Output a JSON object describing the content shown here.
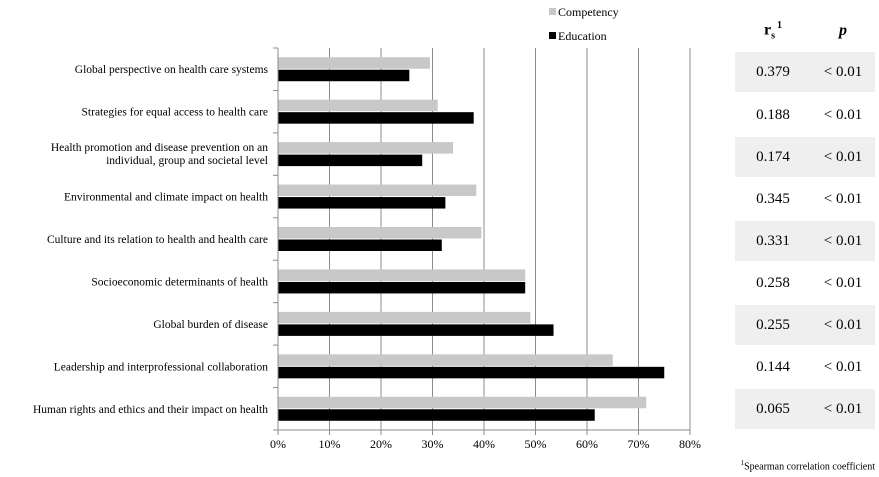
{
  "chart_data": {
    "type": "bar",
    "orientation": "horizontal",
    "categories": [
      "Global perspective on health care systems",
      "Strategies for equal access to health care",
      "Health promotion and disease prevention on an individual, group and societal level",
      "Environmental and climate impact on health",
      "Culture and its relation to health and health care",
      "Socioeconomic determinants of health",
      "Global burden of disease",
      "Leadership and interprofessional collaboration",
      "Human rights and ethics and their impact on health"
    ],
    "series": [
      {
        "name": "Competency",
        "color": "#c8c8c8",
        "values": [
          29.5,
          31,
          34,
          38.5,
          39.5,
          48,
          49,
          65,
          71.5
        ]
      },
      {
        "name": "Education",
        "color": "#000000",
        "values": [
          25.5,
          38,
          28,
          32.5,
          31.8,
          48,
          53.5,
          75,
          61.5
        ]
      }
    ],
    "xlim": [
      0,
      80
    ],
    "xticks": [
      "0%",
      "10%",
      "20%",
      "30%",
      "40%",
      "50%",
      "60%",
      "70%",
      "80%"
    ],
    "grid": "vertical",
    "legend": "top-center"
  },
  "stats": {
    "header_rs": "r",
    "header_rs_sub": "s",
    "header_rs_sup": "1",
    "header_p": "p",
    "rows": [
      {
        "rs": "0.379",
        "p": "< 0.01"
      },
      {
        "rs": "0.188",
        "p": "< 0.01"
      },
      {
        "rs": "0.174",
        "p": "< 0.01"
      },
      {
        "rs": "0.345",
        "p": "< 0.01"
      },
      {
        "rs": "0.331",
        "p": "< 0.01"
      },
      {
        "rs": "0.258",
        "p": "< 0.01"
      },
      {
        "rs": "0.255",
        "p": "< 0.01"
      },
      {
        "rs": "0.144",
        "p": "< 0.01"
      },
      {
        "rs": "0.065",
        "p": "< 0.01"
      }
    ]
  },
  "footnote": {
    "marker": "1",
    "text": "Spearman correlation coefficient"
  }
}
